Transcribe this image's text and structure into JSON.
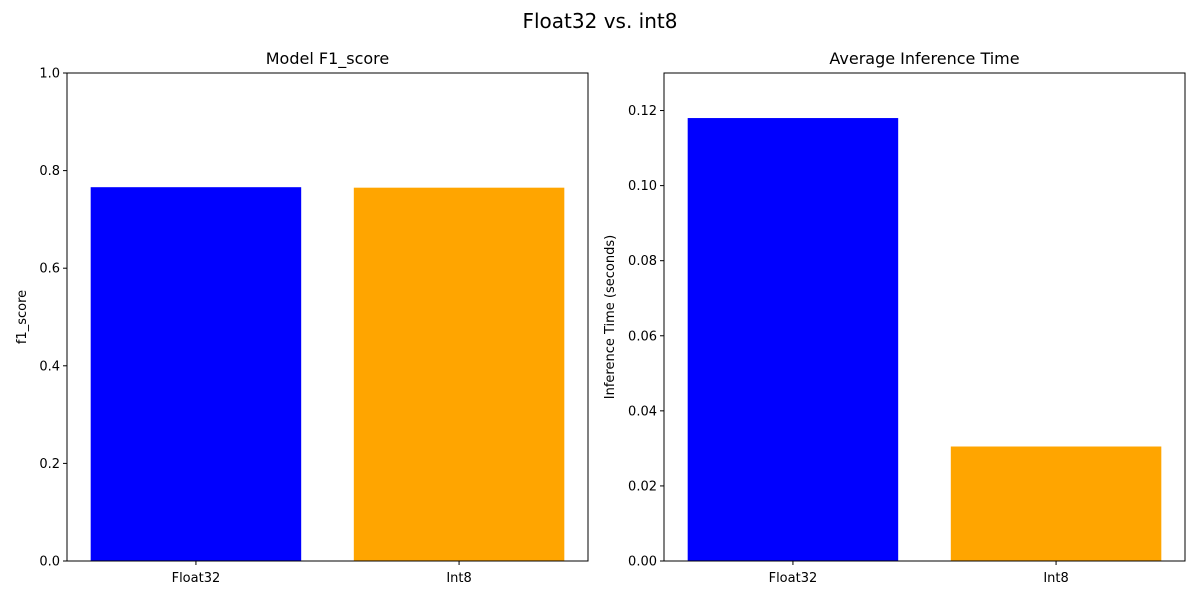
{
  "figure_title": "Float32 vs. int8",
  "colors": [
    "#0000ff",
    "#ffa500"
  ],
  "chart_data": [
    {
      "type": "bar",
      "title": "Model F1_score",
      "xlabel": "",
      "ylabel": "f1_score",
      "categories": [
        "Float32",
        "Int8"
      ],
      "values": [
        0.766,
        0.765
      ],
      "ylim": [
        0,
        1.0
      ],
      "yticks": [
        0.0,
        0.2,
        0.4,
        0.6,
        0.8,
        1.0
      ],
      "ytick_labels": [
        "0.0",
        "0.2",
        "0.4",
        "0.6",
        "0.8",
        "1.0"
      ],
      "grid": false,
      "bar_colors": [
        "#0000ff",
        "#ffa500"
      ]
    },
    {
      "type": "bar",
      "title": "Average Inference Time",
      "xlabel": "",
      "ylabel": "Inference Time (seconds)",
      "categories": [
        "Float32",
        "Int8"
      ],
      "values": [
        0.118,
        0.0305
      ],
      "ylim": [
        0,
        0.13
      ],
      "yticks": [
        0.0,
        0.02,
        0.04,
        0.06,
        0.08,
        0.1,
        0.12
      ],
      "ytick_labels": [
        "0.00",
        "0.02",
        "0.04",
        "0.06",
        "0.08",
        "0.10",
        "0.12"
      ],
      "grid": false,
      "bar_colors": [
        "#0000ff",
        "#ffa500"
      ]
    }
  ]
}
